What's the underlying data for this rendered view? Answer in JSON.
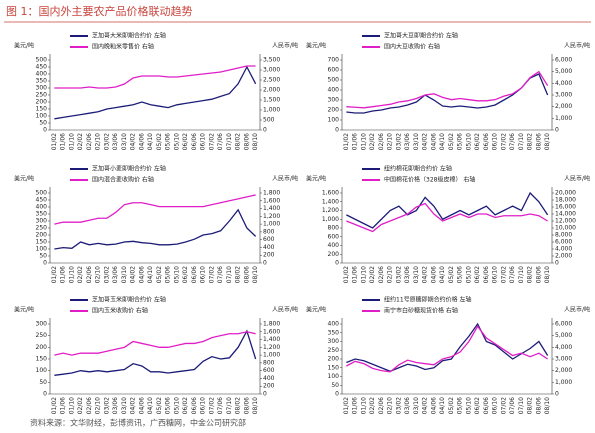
{
  "title": "图 1：国内外主要农产品价格联动趋势",
  "source": "资料来源：文华财经，彭博资讯，广西糖网，中金公司研究部",
  "chart_data": [
    {
      "type": "line",
      "y_label": "美元/吨",
      "y2_label": "人民币/吨",
      "categories": [
        "01/02",
        "01/06",
        "01/10",
        "02/02",
        "02/06",
        "02/10",
        "03/02",
        "03/06",
        "03/10",
        "04/02",
        "04/06",
        "04/10",
        "05/02",
        "05/06",
        "05/10",
        "06/02",
        "06/06",
        "06/10",
        "07/02",
        "07/06",
        "07/10",
        "08/02",
        "08/06",
        "08/10"
      ],
      "ylim": [
        0,
        500
      ],
      "yticks": [
        0,
        50,
        100,
        150,
        200,
        250,
        300,
        350,
        400,
        450,
        500
      ],
      "y2lim": [
        0,
        3500
      ],
      "y2ticks": [
        0,
        500,
        {
          "value": 1000,
          "label": "1,000"
        },
        {
          "value": 1500,
          "label": "1,500"
        },
        {
          "value": 2000,
          "label": "2,000"
        },
        {
          "value": 2500,
          "label": "2,500"
        },
        {
          "value": 3000,
          "label": "3,000"
        },
        {
          "value": 3500,
          "label": "3,500"
        }
      ],
      "series": [
        {
          "name": "芝加哥大米即期合约价  左轴",
          "color": "#1c1c78",
          "values": [
            80,
            90,
            100,
            110,
            120,
            130,
            150,
            160,
            170,
            180,
            200,
            180,
            170,
            160,
            180,
            190,
            200,
            210,
            220,
            240,
            260,
            330,
            450,
            330
          ]
        },
        {
          "name": "国内晚籼米零售价  右轴",
          "color": "#e01ec8",
          "axis": "y2",
          "values": [
            2100,
            2100,
            2100,
            2100,
            2150,
            2100,
            2100,
            2150,
            2300,
            2600,
            2700,
            2700,
            2700,
            2650,
            2650,
            2700,
            2750,
            2800,
            2850,
            2900,
            3000,
            3100,
            3200,
            3200
          ]
        }
      ]
    },
    {
      "type": "line",
      "y_label": "美元/吨",
      "y2_label": "人民币/吨",
      "categories": [
        "01/02",
        "01/06",
        "01/10",
        "02/02",
        "02/06",
        "02/10",
        "03/02",
        "03/06",
        "03/10",
        "04/02",
        "04/06",
        "04/10",
        "05/02",
        "05/06",
        "05/10",
        "06/02",
        "06/06",
        "06/10",
        "07/02",
        "07/06",
        "07/10",
        "08/02",
        "08/06",
        "08/10"
      ],
      "ylim": [
        0,
        700
      ],
      "yticks": [
        0,
        100,
        200,
        300,
        400,
        500,
        600,
        700
      ],
      "y2lim": [
        0,
        6000
      ],
      "y2ticks": [
        0,
        {
          "value": 1000,
          "label": "1,000"
        },
        {
          "value": 2000,
          "label": "2,000"
        },
        {
          "value": 3000,
          "label": "3,000"
        },
        {
          "value": 4000,
          "label": "4,000"
        },
        {
          "value": 5000,
          "label": "5,000"
        },
        {
          "value": 6000,
          "label": "6,000"
        }
      ],
      "series": [
        {
          "name": "芝加哥大豆即期合约价  左轴",
          "color": "#1c1c78",
          "values": [
            180,
            170,
            170,
            190,
            200,
            220,
            230,
            250,
            280,
            350,
            300,
            240,
            230,
            240,
            230,
            220,
            230,
            250,
            300,
            350,
            420,
            520,
            560,
            350
          ]
        },
        {
          "name": "国内大豆收购价  右轴",
          "color": "#e01ec8",
          "axis": "y2",
          "values": [
            2000,
            1950,
            1900,
            2000,
            2100,
            2200,
            2400,
            2500,
            2700,
            3000,
            3100,
            2800,
            2600,
            2700,
            2600,
            2500,
            2500,
            2600,
            2900,
            3100,
            3600,
            4500,
            5000,
            3800
          ]
        }
      ]
    },
    {
      "type": "line",
      "y_label": "美元/吨",
      "y2_label": "人民币/吨",
      "categories": [
        "01/02",
        "01/06",
        "01/10",
        "02/02",
        "02/06",
        "02/10",
        "03/02",
        "03/06",
        "03/10",
        "04/02",
        "04/06",
        "04/10",
        "05/02",
        "05/06",
        "05/10",
        "06/02",
        "06/06",
        "06/10",
        "07/02",
        "07/06",
        "07/10",
        "08/02",
        "08/06",
        "08/10"
      ],
      "ylim": [
        0,
        500
      ],
      "yticks": [
        0,
        50,
        100,
        150,
        200,
        250,
        300,
        350,
        400,
        450,
        500
      ],
      "y2lim": [
        0,
        1800
      ],
      "y2ticks": [
        0,
        200,
        400,
        600,
        800,
        {
          "value": 1000,
          "label": "1,000"
        },
        {
          "value": 1200,
          "label": "1,200"
        },
        {
          "value": 1400,
          "label": "1,400"
        },
        {
          "value": 1600,
          "label": "1,600"
        },
        {
          "value": 1800,
          "label": "1,800"
        }
      ],
      "series": [
        {
          "name": "芝加哥小麦即期合约价  左轴",
          "color": "#1c1c78",
          "values": [
            100,
            110,
            105,
            150,
            130,
            140,
            130,
            135,
            150,
            155,
            145,
            140,
            130,
            130,
            135,
            150,
            170,
            200,
            210,
            230,
            300,
            380,
            250,
            190
          ]
        },
        {
          "name": "国内混合麦收购价  右轴",
          "color": "#e01ec8",
          "axis": "y2",
          "values": [
            1000,
            1050,
            1050,
            1050,
            1100,
            1150,
            1150,
            1300,
            1500,
            1550,
            1550,
            1500,
            1450,
            1450,
            1450,
            1450,
            1450,
            1450,
            1500,
            1550,
            1600,
            1650,
            1700,
            1750
          ]
        }
      ]
    },
    {
      "type": "line",
      "y_label": "美元/吨",
      "y2_label": "人民币/吨",
      "categories": [
        "01/02",
        "01/06",
        "01/10",
        "02/02",
        "02/06",
        "02/10",
        "03/02",
        "03/06",
        "03/10",
        "04/02",
        "04/06",
        "04/10",
        "05/02",
        "05/06",
        "05/10",
        "06/02",
        "06/06",
        "06/10",
        "07/02",
        "07/06",
        "07/10",
        "08/02",
        "08/06",
        "08/10"
      ],
      "ylim": [
        0,
        1600
      ],
      "yticks": [
        0,
        200,
        400,
        600,
        800,
        {
          "value": 1000,
          "label": "1,000"
        },
        {
          "value": 1200,
          "label": "1,200"
        },
        {
          "value": 1400,
          "label": "1,400"
        },
        {
          "value": 1600,
          "label": "1,600"
        }
      ],
      "y2lim": [
        0,
        20000
      ],
      "y2ticks": [
        0,
        {
          "value": 2000,
          "label": "2,000"
        },
        {
          "value": 4000,
          "label": "4,000"
        },
        {
          "value": 6000,
          "label": "6,000"
        },
        {
          "value": 8000,
          "label": "8,000"
        },
        {
          "value": 10000,
          "label": "10,000"
        },
        {
          "value": 12000,
          "label": "12,000"
        },
        {
          "value": 14000,
          "label": "14,000"
        },
        {
          "value": 16000,
          "label": "16,000"
        },
        {
          "value": 18000,
          "label": "18,000"
        },
        {
          "value": 20000,
          "label": "20,000"
        }
      ],
      "series": [
        {
          "name": "纽约棉花即期合约价  左轴",
          "color": "#1c1c78",
          "values": [
            1100,
            1000,
            900,
            800,
            1000,
            1200,
            1300,
            1100,
            1200,
            1500,
            1300,
            1000,
            1100,
            1200,
            1100,
            1200,
            1300,
            1100,
            1200,
            1300,
            1200,
            1600,
            1400,
            1100
          ]
        },
        {
          "name": "中国棉花价格（328级皮棉）  右轴",
          "color": "#e01ec8",
          "axis": "y2",
          "values": [
            12000,
            11000,
            10000,
            9000,
            11000,
            12000,
            13000,
            14000,
            16000,
            17000,
            14000,
            12000,
            13000,
            14000,
            13000,
            14000,
            14000,
            13000,
            13500,
            13500,
            13500,
            14000,
            13500,
            12000
          ]
        }
      ]
    },
    {
      "type": "line",
      "y_label": "美元/吨",
      "y2_label": "人民币/吨",
      "categories": [
        "01/02",
        "01/06",
        "01/10",
        "02/02",
        "02/06",
        "02/10",
        "03/02",
        "03/06",
        "03/10",
        "04/02",
        "04/06",
        "04/10",
        "05/02",
        "05/06",
        "05/10",
        "06/02",
        "06/06",
        "06/10",
        "07/02",
        "07/06",
        "07/10",
        "08/02",
        "08/06",
        "08/10"
      ],
      "ylim": [
        0,
        300
      ],
      "yticks": [
        0,
        50,
        100,
        150,
        200,
        250,
        300
      ],
      "y2lim": [
        0,
        1800
      ],
      "y2ticks": [
        0,
        200,
        400,
        600,
        800,
        {
          "value": 1000,
          "label": "1,000"
        },
        {
          "value": 1200,
          "label": "1,200"
        },
        {
          "value": 1400,
          "label": "1,400"
        },
        {
          "value": 1600,
          "label": "1,600"
        },
        {
          "value": 1800,
          "label": "1,800"
        }
      ],
      "series": [
        {
          "name": "芝加哥玉米即期合约价  左轴",
          "color": "#1c1c78",
          "values": [
            80,
            85,
            90,
            100,
            95,
            100,
            95,
            100,
            105,
            130,
            120,
            95,
            95,
            90,
            95,
            100,
            105,
            140,
            160,
            150,
            155,
            200,
            270,
            150
          ]
        },
        {
          "name": "国内玉米收购价  右轴",
          "color": "#e01ec8",
          "axis": "y2",
          "values": [
            1000,
            1050,
            1000,
            1050,
            1050,
            1050,
            1100,
            1150,
            1200,
            1350,
            1300,
            1250,
            1200,
            1200,
            1250,
            1300,
            1300,
            1350,
            1450,
            1500,
            1550,
            1550,
            1600,
            1550
          ]
        }
      ]
    },
    {
      "type": "line",
      "y_label": "美元/吨",
      "y2_label": "人民币/吨",
      "categories": [
        "01/02",
        "01/06",
        "01/10",
        "02/02",
        "02/06",
        "02/10",
        "03/02",
        "03/06",
        "03/10",
        "04/02",
        "04/06",
        "04/10",
        "05/02",
        "05/06",
        "05/10",
        "06/02",
        "06/06",
        "06/10",
        "07/02",
        "07/06",
        "07/10",
        "08/02",
        "08/06",
        "08/10"
      ],
      "ylim": [
        0,
        400
      ],
      "yticks": [
        0,
        50,
        100,
        150,
        200,
        250,
        300,
        350,
        400
      ],
      "y2lim": [
        0,
        6000
      ],
      "y2ticks": [
        0,
        {
          "value": 1000,
          "label": "1,000"
        },
        {
          "value": 2000,
          "label": "2,000"
        },
        {
          "value": 3000,
          "label": "3,000"
        },
        {
          "value": 4000,
          "label": "4,000"
        },
        {
          "value": 5000,
          "label": "5,000"
        },
        {
          "value": 6000,
          "label": "6,000"
        }
      ],
      "series": [
        {
          "name": "纽约11号原糖即期合约价格  左轴",
          "color": "#1c1c78",
          "values": [
            180,
            200,
            190,
            170,
            150,
            130,
            150,
            170,
            160,
            140,
            150,
            190,
            200,
            270,
            330,
            400,
            300,
            280,
            240,
            200,
            230,
            260,
            300,
            220
          ]
        },
        {
          "name": "南宁市白砂糖现货价格  右轴",
          "color": "#e01ec8",
          "axis": "y2",
          "values": [
            2400,
            2800,
            2600,
            2200,
            2000,
            1900,
            2500,
            2900,
            2700,
            2600,
            2500,
            3000,
            3200,
            3600,
            4500,
            5800,
            4800,
            4300,
            3800,
            3300,
            3500,
            3200,
            3500,
            3000
          ]
        }
      ]
    }
  ]
}
